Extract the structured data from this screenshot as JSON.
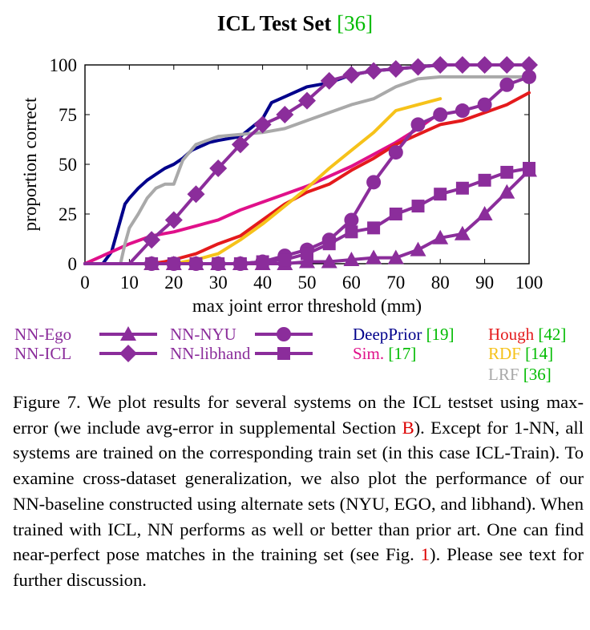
{
  "chart_data": {
    "type": "line",
    "title": "ICL Test Set",
    "title_ref": "[36]",
    "xlabel": "max joint error threshold (mm)",
    "ylabel": "proportion correct",
    "xlim": [
      0,
      100
    ],
    "ylim": [
      0,
      100
    ],
    "xticks": [
      0,
      10,
      20,
      30,
      40,
      50,
      60,
      70,
      80,
      90,
      100
    ],
    "yticks": [
      0,
      25,
      50,
      75,
      100
    ],
    "grid": false,
    "legend_position": "bottom",
    "series": [
      {
        "name": "NN-Ego",
        "ref": "",
        "color": "#8b2d9b",
        "marker": "triangle",
        "x": [
          0,
          5,
          10,
          15,
          20,
          25,
          30,
          35,
          40,
          45,
          50,
          55,
          60,
          65,
          70,
          75,
          80,
          85,
          90,
          95,
          100
        ],
        "y": [
          0,
          0,
          0,
          0,
          0,
          0,
          0,
          0,
          0,
          0,
          1,
          1,
          2,
          3,
          3,
          7,
          13,
          15,
          25,
          36,
          47
        ]
      },
      {
        "name": "NN-ICL",
        "ref": "",
        "color": "#8b2d9b",
        "marker": "diamond",
        "x": [
          0,
          5,
          10,
          15,
          20,
          25,
          30,
          35,
          40,
          45,
          50,
          55,
          60,
          65,
          70,
          75,
          80,
          85,
          90,
          95,
          100
        ],
        "y": [
          0,
          0,
          0,
          12,
          22,
          35,
          48,
          60,
          70,
          75,
          82,
          92,
          95,
          97,
          98,
          99,
          100,
          100,
          100,
          100,
          100
        ]
      },
      {
        "name": "NN-NYU",
        "ref": "",
        "color": "#8b2d9b",
        "marker": "circle",
        "x": [
          0,
          5,
          10,
          15,
          20,
          25,
          30,
          35,
          40,
          45,
          50,
          55,
          60,
          65,
          70,
          75,
          80,
          85,
          90,
          95,
          100
        ],
        "y": [
          0,
          0,
          0,
          0,
          0,
          0,
          0,
          0,
          1,
          4,
          7,
          12,
          22,
          41,
          56,
          70,
          75,
          77,
          80,
          90,
          94
        ]
      },
      {
        "name": "NN-libhand",
        "ref": "",
        "color": "#8b2d9b",
        "marker": "square",
        "x": [
          0,
          5,
          10,
          15,
          20,
          25,
          30,
          35,
          40,
          45,
          50,
          55,
          60,
          65,
          70,
          75,
          80,
          85,
          90,
          95,
          100
        ],
        "y": [
          0,
          0,
          0,
          0,
          0,
          0,
          0,
          0,
          1,
          2,
          5,
          10,
          16,
          18,
          25,
          29,
          35,
          38,
          42,
          46,
          48
        ]
      },
      {
        "name": "DeepPrior",
        "ref": "[19]",
        "color": "#00008b",
        "marker": "",
        "x": [
          0,
          4,
          6,
          8,
          9,
          10,
          12,
          14,
          16,
          18,
          20,
          22,
          24,
          26,
          28,
          30,
          35,
          40,
          42,
          45,
          50,
          55,
          60,
          65,
          70,
          75,
          80,
          85,
          90,
          95,
          100
        ],
        "y": [
          0,
          0,
          6,
          22,
          30,
          33,
          38,
          42,
          45,
          48,
          50,
          53,
          57,
          59,
          61,
          62,
          64,
          73,
          81,
          84,
          89,
          91,
          95,
          97,
          98,
          99,
          100,
          100,
          100,
          100,
          100
        ]
      },
      {
        "name": "Sim.",
        "ref": "[17]",
        "color": "#e0108a",
        "marker": "",
        "x": [
          0,
          5,
          10,
          15,
          20,
          25,
          30,
          35,
          40,
          45,
          50,
          55,
          60,
          65,
          70,
          75,
          80
        ],
        "y": [
          0,
          5,
          10,
          14,
          16,
          19,
          22,
          27,
          31,
          35,
          39,
          44,
          49,
          55,
          61,
          68,
          76
        ]
      },
      {
        "name": "Hough",
        "ref": "[42]",
        "color": "#e41a1c",
        "marker": "",
        "x": [
          0,
          10,
          15,
          18,
          20,
          25,
          30,
          35,
          40,
          45,
          50,
          55,
          60,
          65,
          70,
          75,
          80,
          85,
          90,
          95,
          100
        ],
        "y": [
          0,
          0,
          0,
          1,
          2,
          5,
          10,
          14,
          22,
          30,
          36,
          40,
          47,
          53,
          60,
          65,
          70,
          72,
          76,
          80,
          86
        ]
      },
      {
        "name": "RDF",
        "ref": "[14]",
        "color": "#f6c21a",
        "marker": "",
        "x": [
          0,
          10,
          20,
          25,
          30,
          35,
          40,
          45,
          50,
          55,
          60,
          65,
          70,
          75,
          80
        ],
        "y": [
          0,
          0,
          0,
          2,
          5,
          12,
          20,
          29,
          38,
          48,
          57,
          66,
          77,
          80,
          83
        ]
      },
      {
        "name": "LRF",
        "ref": "[36]",
        "color": "#a9a9a9",
        "marker": "",
        "x": [
          0,
          8,
          9,
          10,
          12,
          14,
          16,
          18,
          20,
          22,
          25,
          30,
          35,
          40,
          45,
          50,
          55,
          60,
          65,
          70,
          75,
          80,
          85,
          90,
          95,
          100
        ],
        "y": [
          0,
          0,
          10,
          18,
          25,
          33,
          38,
          40,
          40,
          52,
          60,
          64,
          65,
          66,
          68,
          72,
          76,
          80,
          83,
          89,
          93,
          94,
          94,
          94,
          94,
          94
        ]
      }
    ]
  },
  "caption": {
    "figure_label": "Figure 7.",
    "text_part1": " We plot results for several systems on the ICL testset using max-error (we include avg-error in supplemental Section ",
    "section_ref": "B",
    "text_part2": "). Except for 1-NN, all systems are trained on the corresponding train set (in this case ICL-Train). To examine cross-dataset generalization, we also plot the performance of our NN-baseline constructed using alternate sets (NYU, EGO, and libhand). When trained with ICL, NN performs as well or better than prior art. One can find near-perfect pose matches in the training set (see Fig. ",
    "fig_ref": "1",
    "text_part3": "). Please see text for further discussion."
  },
  "colors": {
    "citation_green": "#00bb00",
    "citation_red": "#dd0000"
  }
}
